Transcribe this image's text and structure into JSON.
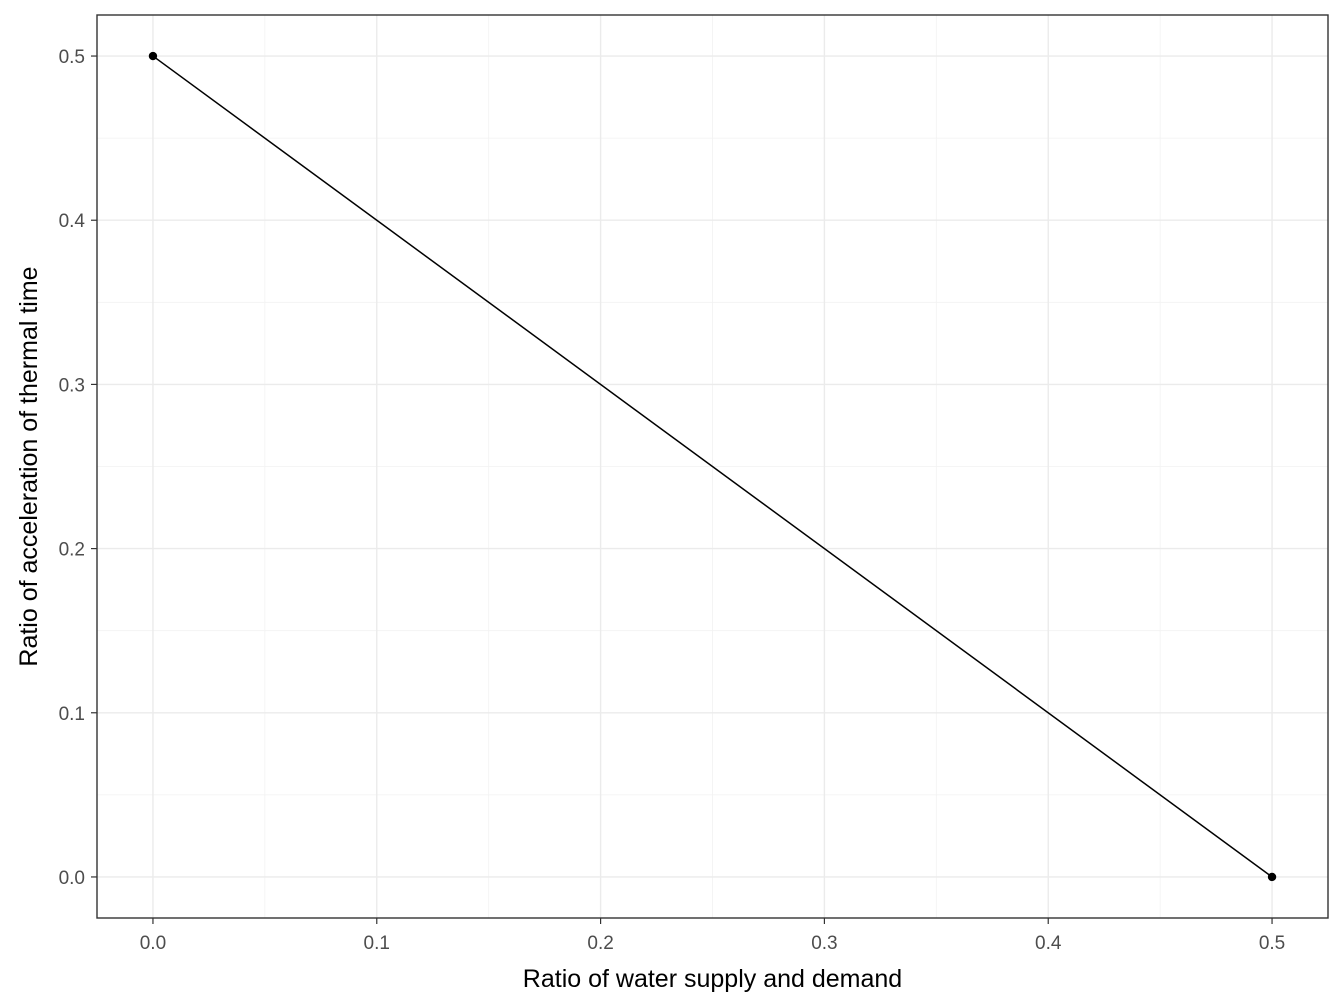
{
  "chart_data": {
    "type": "line",
    "title": "",
    "xlabel": "Ratio of water supply and demand",
    "ylabel": "Ratio of acceleration of thermal time",
    "x": [
      0.0,
      0.5
    ],
    "y": [
      0.5,
      0.0
    ],
    "series": [
      {
        "x": [
          0.0,
          0.5
        ],
        "values": [
          0.5,
          0.0
        ],
        "color": "#000000",
        "markers": true
      }
    ],
    "xlim": [
      -0.025,
      0.525
    ],
    "ylim": [
      -0.025,
      0.525
    ],
    "xticks": [
      0.0,
      0.1,
      0.2,
      0.3,
      0.4,
      0.5
    ],
    "xtick_labels": [
      "0.0",
      "0.1",
      "0.2",
      "0.3",
      "0.4",
      "0.5"
    ],
    "yticks": [
      0.0,
      0.1,
      0.2,
      0.3,
      0.4,
      0.5
    ],
    "ytick_labels": [
      "0.0",
      "0.1",
      "0.2",
      "0.3",
      "0.4",
      "0.5"
    ],
    "grid": true,
    "legend": "none",
    "theme": "bw"
  }
}
